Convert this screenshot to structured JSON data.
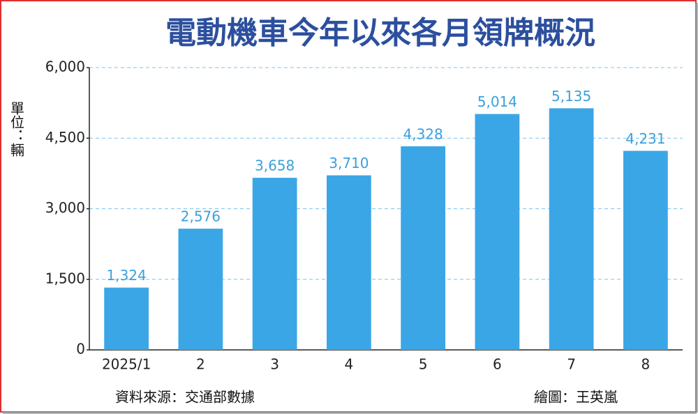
{
  "chart_data": {
    "type": "bar",
    "title": "電動機車今年以來各月領牌概況",
    "y_label": "單位：輛",
    "source": "資料來源：交通部數據",
    "credit": "繪圖：王英嵐",
    "categories": [
      "2025/1",
      "2",
      "3",
      "4",
      "5",
      "6",
      "7",
      "8"
    ],
    "values": [
      1324,
      2576,
      3658,
      3710,
      4328,
      5014,
      5135,
      4231
    ],
    "value_labels": [
      "1,324",
      "2,576",
      "3,658",
      "3,710",
      "4,328",
      "5,014",
      "5,135",
      "4,231"
    ],
    "color": "#3ba6e6",
    "ylim": [
      0,
      6000
    ],
    "yticks": [
      0,
      {
        "value": 1500,
        "label": "1,500"
      },
      {
        "value": 3000,
        "label": "3,000"
      },
      {
        "value": 4500,
        "label": "4,500"
      },
      {
        "value": 6000,
        "label": "6,000"
      }
    ],
    "grid": true
  }
}
